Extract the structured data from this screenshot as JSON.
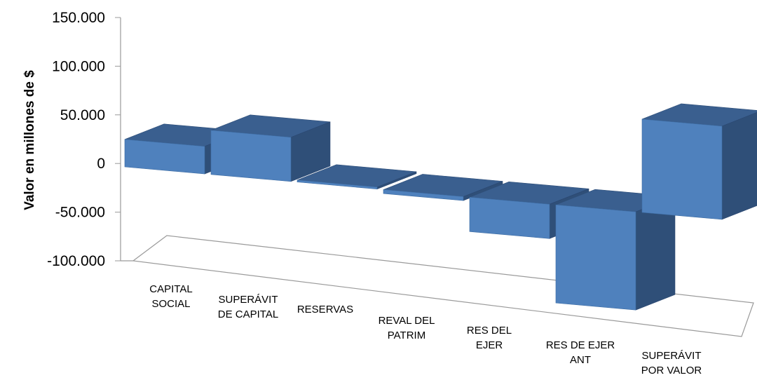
{
  "chart_data": {
    "type": "bar",
    "categories": [
      [
        "CAPITAL",
        "SOCIAL"
      ],
      [
        "SUPERÁVIT",
        "DE CAPITAL"
      ],
      [
        "RESERVAS"
      ],
      [
        "REVAL DEL",
        "PATRIM"
      ],
      [
        "RES DEL",
        "EJER"
      ],
      [
        "RES DE EJER",
        "ANT"
      ],
      [
        "SUPERÁVIT",
        "POR VALOR"
      ]
    ],
    "values": [
      28000,
      45000,
      2000,
      -4000,
      -35000,
      -100000,
      95000
    ],
    "ylabel": "Valor en millones de $",
    "yticks": [
      "150.000",
      "100.000",
      "50.000",
      "0",
      "-50.000",
      "-100.000"
    ],
    "ylim": [
      -100000,
      150000
    ],
    "colors": {
      "front": "#4f81bd",
      "top": "#3a5f8f",
      "side": "#2f4f78",
      "axis": "#9a9a9a"
    }
  }
}
